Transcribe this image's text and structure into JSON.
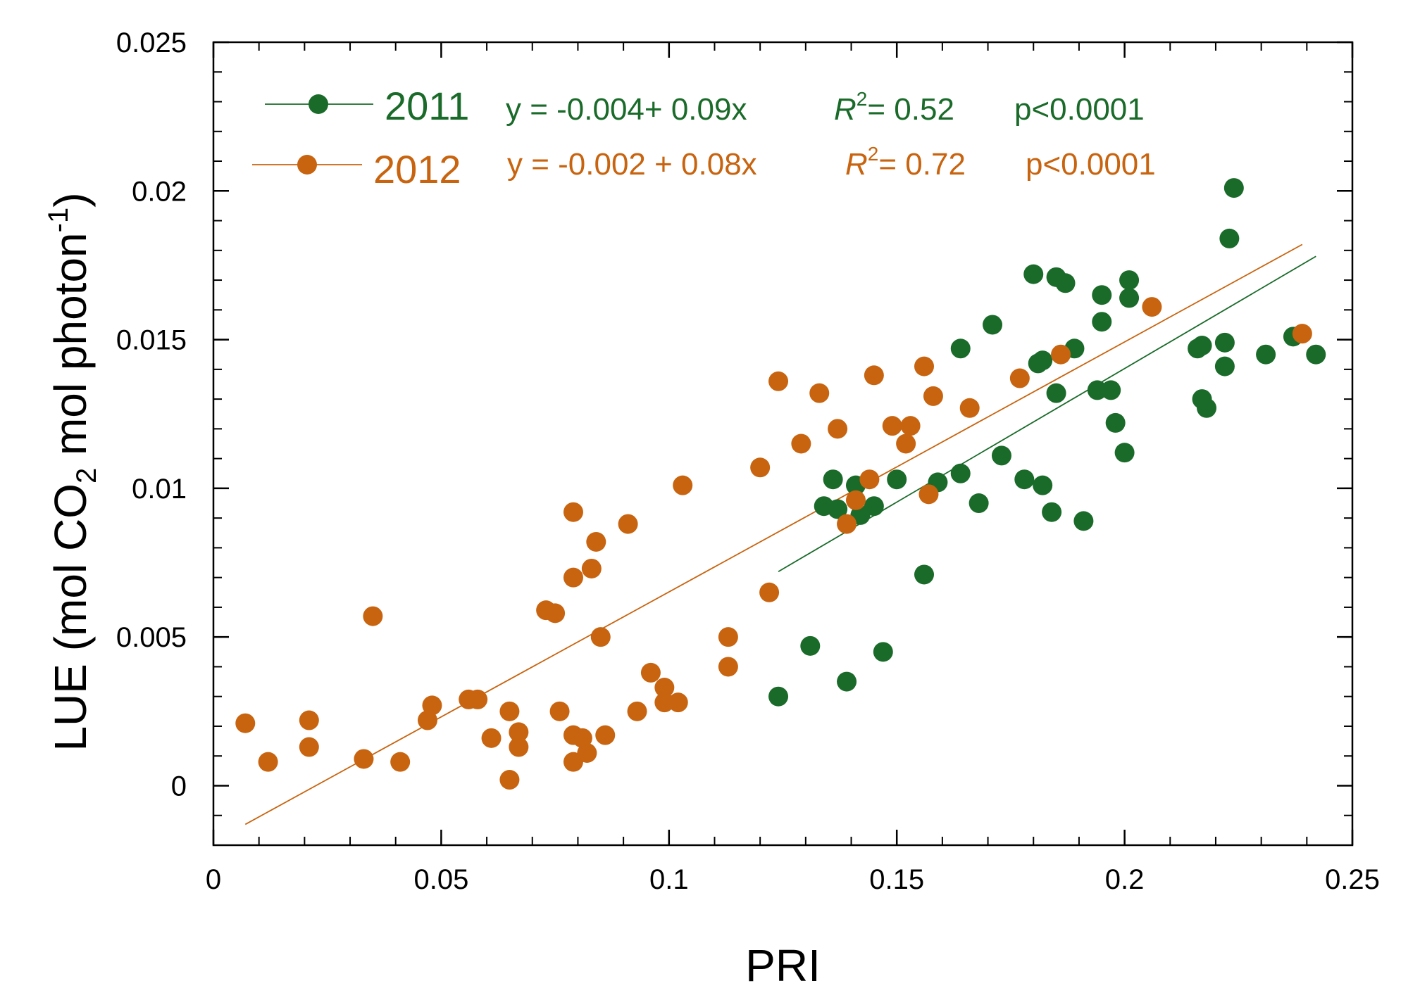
{
  "chart_data": {
    "type": "scatter",
    "title": "",
    "xlabel": "PRI",
    "ylabel_parts": {
      "prefix": "LUE (mol CO",
      "sub": "2",
      "middle": " mol photon",
      "sup": "-1",
      "suffix": ")"
    },
    "xlim": [
      0,
      0.25
    ],
    "ylim": [
      -0.002,
      0.025
    ],
    "x_ticks": [
      0,
      0.05,
      0.1,
      0.15,
      0.2,
      0.25
    ],
    "x_tick_labels": [
      "0",
      "0.05",
      "0.1",
      "0.15",
      "0.2",
      "0.25"
    ],
    "y_ticks": [
      0,
      0.005,
      0.01,
      0.015,
      0.02,
      0.025
    ],
    "y_tick_labels": [
      "0",
      "0.005",
      "0.01",
      "0.015",
      "0.02",
      "0.025"
    ],
    "x_minor_step": 0.01,
    "y_minor_step": 0.001,
    "grid": false,
    "legend_position": "top-left",
    "series": [
      {
        "name": "2011",
        "color": "#1a6b2a",
        "equation": "y = -0.004+ 0.09x",
        "r2_label": "R",
        "r2_sup": "2",
        "r2_value": "= 0.52",
        "p_value": "p<0.0001",
        "fit": {
          "x0": 0.124,
          "y0": 0.0072,
          "x1": 0.242,
          "y1": 0.0178
        },
        "points": [
          [
            0.124,
            0.003
          ],
          [
            0.131,
            0.0047
          ],
          [
            0.134,
            0.0094
          ],
          [
            0.136,
            0.0103
          ],
          [
            0.137,
            0.0093
          ],
          [
            0.139,
            0.0035
          ],
          [
            0.141,
            0.0101
          ],
          [
            0.142,
            0.0091
          ],
          [
            0.145,
            0.0094
          ],
          [
            0.147,
            0.0045
          ],
          [
            0.15,
            0.0103
          ],
          [
            0.156,
            0.0071
          ],
          [
            0.159,
            0.0102
          ],
          [
            0.164,
            0.0105
          ],
          [
            0.164,
            0.0147
          ],
          [
            0.168,
            0.0095
          ],
          [
            0.171,
            0.0155
          ],
          [
            0.173,
            0.0111
          ],
          [
            0.178,
            0.0103
          ],
          [
            0.18,
            0.0172
          ],
          [
            0.181,
            0.0142
          ],
          [
            0.182,
            0.0143
          ],
          [
            0.182,
            0.0101
          ],
          [
            0.184,
            0.0092
          ],
          [
            0.185,
            0.0132
          ],
          [
            0.185,
            0.0171
          ],
          [
            0.187,
            0.0169
          ],
          [
            0.189,
            0.0147
          ],
          [
            0.191,
            0.0089
          ],
          [
            0.194,
            0.0133
          ],
          [
            0.195,
            0.0165
          ],
          [
            0.195,
            0.0156
          ],
          [
            0.197,
            0.0133
          ],
          [
            0.198,
            0.0122
          ],
          [
            0.2,
            0.0112
          ],
          [
            0.201,
            0.0164
          ],
          [
            0.201,
            0.017
          ],
          [
            0.216,
            0.0147
          ],
          [
            0.217,
            0.0148
          ],
          [
            0.217,
            0.013
          ],
          [
            0.218,
            0.0127
          ],
          [
            0.222,
            0.0149
          ],
          [
            0.222,
            0.0141
          ],
          [
            0.223,
            0.0184
          ],
          [
            0.224,
            0.0201
          ],
          [
            0.231,
            0.0145
          ],
          [
            0.237,
            0.0151
          ],
          [
            0.242,
            0.0145
          ]
        ]
      },
      {
        "name": "2012",
        "color": "#c8640f",
        "equation": "y = -0.002 + 0.08x",
        "r2_label": "R",
        "r2_sup": "2",
        "r2_value": "= 0.72",
        "p_value": "p<0.0001",
        "fit": {
          "x0": 0.007,
          "y0": -0.0013,
          "x1": 0.239,
          "y1": 0.0182
        },
        "points": [
          [
            0.007,
            0.0021
          ],
          [
            0.012,
            0.0008
          ],
          [
            0.021,
            0.0013
          ],
          [
            0.021,
            0.0022
          ],
          [
            0.033,
            0.0009
          ],
          [
            0.035,
            0.0057
          ],
          [
            0.041,
            0.0008
          ],
          [
            0.047,
            0.0022
          ],
          [
            0.048,
            0.0027
          ],
          [
            0.056,
            0.0029
          ],
          [
            0.058,
            0.0029
          ],
          [
            0.061,
            0.0016
          ],
          [
            0.065,
            0.0025
          ],
          [
            0.065,
            0.0002
          ],
          [
            0.067,
            0.0018
          ],
          [
            0.067,
            0.0013
          ],
          [
            0.073,
            0.0059
          ],
          [
            0.075,
            0.0058
          ],
          [
            0.076,
            0.0025
          ],
          [
            0.079,
            0.0092
          ],
          [
            0.079,
            0.007
          ],
          [
            0.079,
            0.0017
          ],
          [
            0.079,
            0.0008
          ],
          [
            0.081,
            0.0016
          ],
          [
            0.082,
            0.0011
          ],
          [
            0.083,
            0.0073
          ],
          [
            0.084,
            0.0082
          ],
          [
            0.085,
            0.005
          ],
          [
            0.086,
            0.0017
          ],
          [
            0.091,
            0.0088
          ],
          [
            0.093,
            0.0025
          ],
          [
            0.096,
            0.0038
          ],
          [
            0.099,
            0.0033
          ],
          [
            0.099,
            0.0028
          ],
          [
            0.102,
            0.0028
          ],
          [
            0.103,
            0.0101
          ],
          [
            0.113,
            0.004
          ],
          [
            0.113,
            0.005
          ],
          [
            0.12,
            0.0107
          ],
          [
            0.122,
            0.0065
          ],
          [
            0.124,
            0.0136
          ],
          [
            0.129,
            0.0115
          ],
          [
            0.133,
            0.0132
          ],
          [
            0.137,
            0.012
          ],
          [
            0.139,
            0.0088
          ],
          [
            0.141,
            0.0096
          ],
          [
            0.144,
            0.0103
          ],
          [
            0.145,
            0.0138
          ],
          [
            0.149,
            0.0121
          ],
          [
            0.152,
            0.0115
          ],
          [
            0.153,
            0.0121
          ],
          [
            0.156,
            0.0141
          ],
          [
            0.157,
            0.0098
          ],
          [
            0.158,
            0.0131
          ],
          [
            0.166,
            0.0127
          ],
          [
            0.177,
            0.0137
          ],
          [
            0.186,
            0.0145
          ],
          [
            0.206,
            0.0161
          ],
          [
            0.239,
            0.0152
          ]
        ]
      }
    ]
  }
}
